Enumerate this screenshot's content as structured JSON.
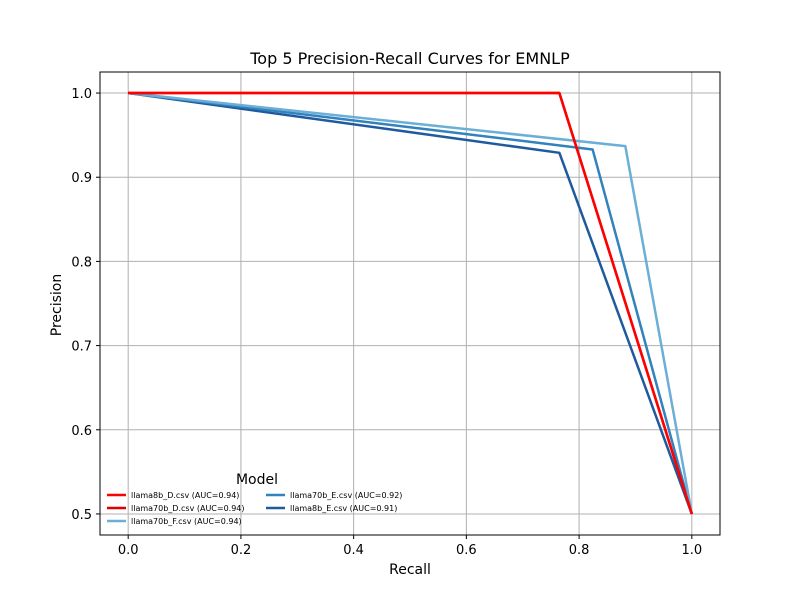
{
  "chart_data": {
    "type": "line",
    "title": "Top 5 Precision-Recall Curves for EMNLP",
    "xlabel": "Recall",
    "ylabel": "Precision",
    "xlim": [
      -0.05,
      1.05
    ],
    "ylim": [
      0.475,
      1.025
    ],
    "xticks": [
      0.0,
      0.2,
      0.4,
      0.6,
      0.8,
      1.0
    ],
    "xtick_labels": [
      "0.0",
      "0.2",
      "0.4",
      "0.6",
      "0.8",
      "1.0"
    ],
    "yticks": [
      0.5,
      0.6,
      0.7,
      0.8,
      0.9,
      1.0
    ],
    "ytick_labels": [
      "0.5",
      "0.6",
      "0.7",
      "0.8",
      "0.9",
      "1.0"
    ],
    "grid": true,
    "legend": {
      "title": "Model",
      "position": "lower-left",
      "columns": 2
    },
    "series": [
      {
        "name": "llama8b_D.csv (AUC=0.94)",
        "color": "#ff0000",
        "x": [
          0.0,
          0.765,
          1.0
        ],
        "y": [
          1.0,
          1.0,
          0.5
        ]
      },
      {
        "name": "llama70b_D.csv (AUC=0.94)",
        "color": "#e00000",
        "x": [
          0.0,
          0.765,
          1.0
        ],
        "y": [
          1.0,
          1.0,
          0.5
        ]
      },
      {
        "name": "llama70b_F.csv (AUC=0.94)",
        "color": "#6baed6",
        "x": [
          0.0,
          0.882,
          1.0
        ],
        "y": [
          1.0,
          0.937,
          0.5
        ]
      },
      {
        "name": "llama70b_E.csv (AUC=0.92)",
        "color": "#3182bd",
        "x": [
          0.0,
          0.824,
          1.0
        ],
        "y": [
          1.0,
          0.933,
          0.5
        ]
      },
      {
        "name": "llama8b_E.csv (AUC=0.91)",
        "color": "#1f5a9e",
        "x": [
          0.0,
          0.765,
          1.0
        ],
        "y": [
          1.0,
          0.929,
          0.5
        ]
      }
    ]
  }
}
